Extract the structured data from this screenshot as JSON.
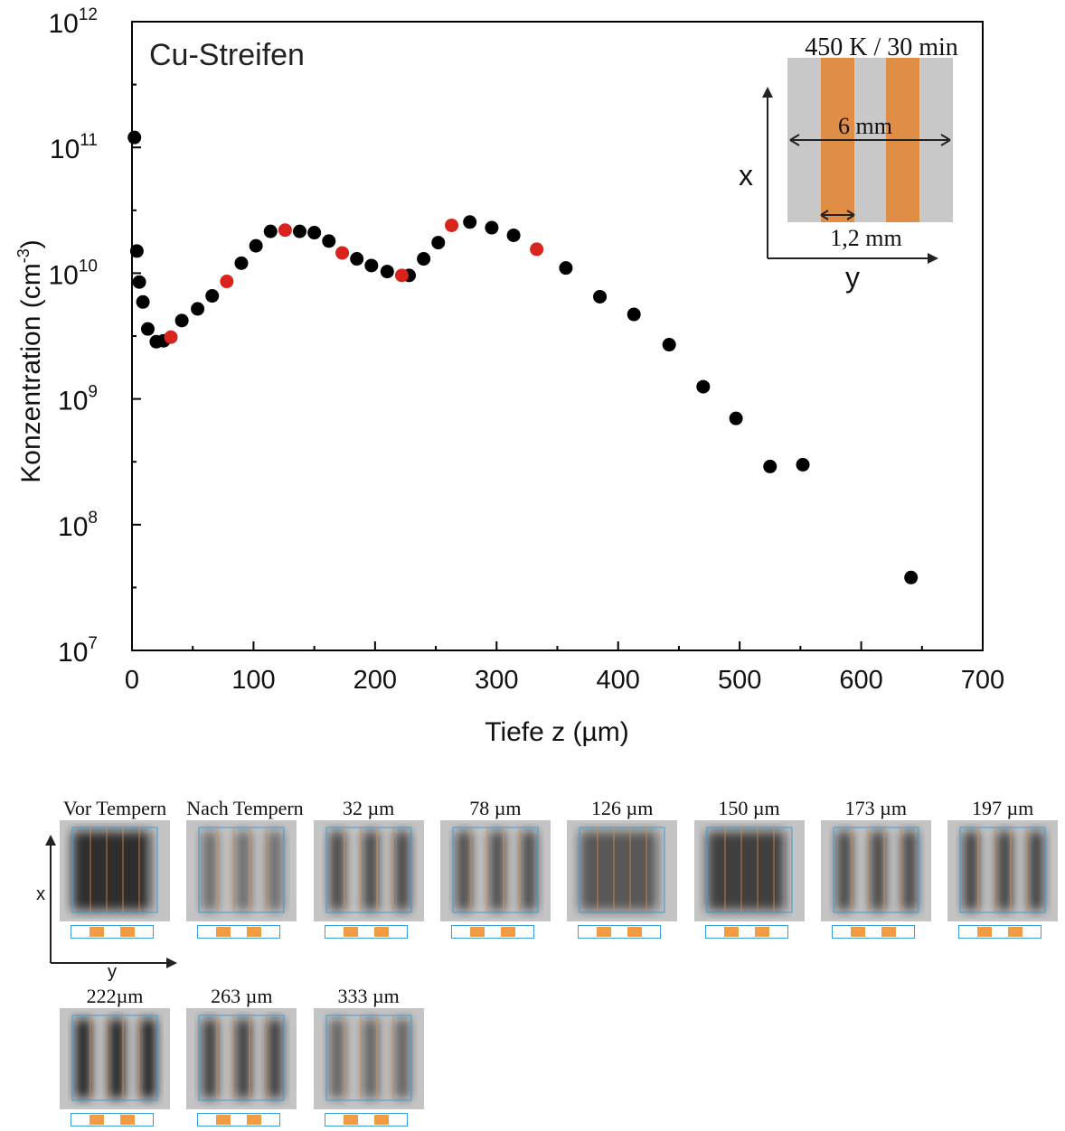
{
  "colors": {
    "black_points": "#000000",
    "red_points": "#d8241c",
    "copper": "#e08e45",
    "sample_grey": "#c8c8c8",
    "frame_blue": "#3aa0d8",
    "strip_orange": "#f39a44"
  },
  "chart_data": {
    "type": "scatter",
    "title": "Cu-Streifen",
    "xlabel": "Tiefe z (µm)",
    "ylabel_main": "Konzentration (cm",
    "ylabel_sup": "-3",
    "ylabel_close": ")",
    "xlim": [
      0,
      700
    ],
    "ylim": [
      10000000.0,
      1000000000000.0
    ],
    "yscale": "log",
    "grid": false,
    "x_ticks": [
      {
        "value": 0,
        "label": "0"
      },
      {
        "value": 100,
        "label": "100"
      },
      {
        "value": 200,
        "label": "200"
      },
      {
        "value": 300,
        "label": "300"
      },
      {
        "value": 400,
        "label": "400"
      },
      {
        "value": 500,
        "label": "500"
      },
      {
        "value": 600,
        "label": "600"
      },
      {
        "value": 700,
        "label": "700"
      }
    ],
    "y_ticks": [
      {
        "value": 10000000.0,
        "base": "10",
        "exp": "7"
      },
      {
        "value": 100000000.0,
        "base": "10",
        "exp": "8"
      },
      {
        "value": 1000000000.0,
        "base": "10",
        "exp": "9"
      },
      {
        "value": 10000000000.0,
        "base": "10",
        "exp": "10"
      },
      {
        "value": 100000000000.0,
        "base": "10",
        "exp": "11"
      },
      {
        "value": 1000000000000.0,
        "base": "10",
        "exp": "12"
      }
    ],
    "series": [
      {
        "color": "#000000",
        "points": [
          [
            2,
            120000000000.0
          ],
          [
            4,
            15000000000.0
          ],
          [
            6,
            8500000000.0
          ],
          [
            9,
            5900000000.0
          ],
          [
            13,
            3600000000.0
          ],
          [
            20,
            2850000000.0
          ],
          [
            26,
            2900000000.0
          ],
          [
            41,
            4200000000.0
          ],
          [
            54,
            5200000000.0
          ],
          [
            66,
            6600000000.0
          ],
          [
            90,
            12000000000.0
          ],
          [
            102,
            16500000000.0
          ],
          [
            114,
            21500000000.0
          ],
          [
            138,
            21500000000.0
          ],
          [
            150,
            21000000000.0
          ],
          [
            162,
            18000000000.0
          ],
          [
            185,
            13000000000.0
          ],
          [
            197,
            11500000000.0
          ],
          [
            210,
            10300000000.0
          ],
          [
            228,
            9600000000.0
          ],
          [
            240,
            13000000000.0
          ],
          [
            252,
            17500000000.0
          ],
          [
            278,
            25500000000.0
          ],
          [
            296,
            23000000000.0
          ],
          [
            314,
            20000000000.0
          ],
          [
            357,
            11000000000.0
          ],
          [
            385,
            6500000000.0
          ],
          [
            413,
            4700000000.0
          ],
          [
            442,
            2700000000.0
          ],
          [
            470,
            1250000000.0
          ],
          [
            497,
            700000000.0
          ],
          [
            525,
            290000000.0
          ],
          [
            552,
            300000000.0
          ],
          [
            641,
            38000000.0
          ]
        ]
      },
      {
        "color": "#d8241c",
        "points": [
          [
            32,
            3100000000.0
          ],
          [
            78,
            8600000000.0
          ],
          [
            126,
            22000000000.0
          ],
          [
            173,
            14500000000.0
          ],
          [
            222,
            9600000000.0
          ],
          [
            263,
            24000000000.0
          ],
          [
            333,
            15500000000.0
          ]
        ]
      }
    ],
    "inset": {
      "label": "450 K / 30 min",
      "width_label": "6 mm",
      "stripe_label": "1,2 mm",
      "axis_x": "x",
      "axis_y": "y"
    }
  },
  "panels": {
    "axis_x": "x",
    "axis_y": "y",
    "row1": [
      {
        "label": "Vor Tempern",
        "shade": 0.92,
        "blur": 1
      },
      {
        "label": "Nach Tempern",
        "shade": 0.55,
        "blur": 0
      },
      {
        "label": "32 µm",
        "shade": 0.75,
        "blur": 0
      },
      {
        "label": "78 µm",
        "shade": 0.72,
        "blur": 0
      },
      {
        "label": "126 µm",
        "shade": 0.68,
        "blur": 1
      },
      {
        "label": "150 µm",
        "shade": 0.82,
        "blur": 1
      },
      {
        "label": "173 µm",
        "shade": 0.75,
        "blur": 0
      },
      {
        "label": "197 µm",
        "shade": 0.78,
        "blur": 0
      }
    ],
    "row2": [
      {
        "label": "222µm",
        "shade": 0.95,
        "blur": 0
      },
      {
        "label": "263 µm",
        "shade": 0.8,
        "blur": 0
      },
      {
        "label": "333 µm",
        "shade": 0.6,
        "blur": 0
      }
    ]
  }
}
